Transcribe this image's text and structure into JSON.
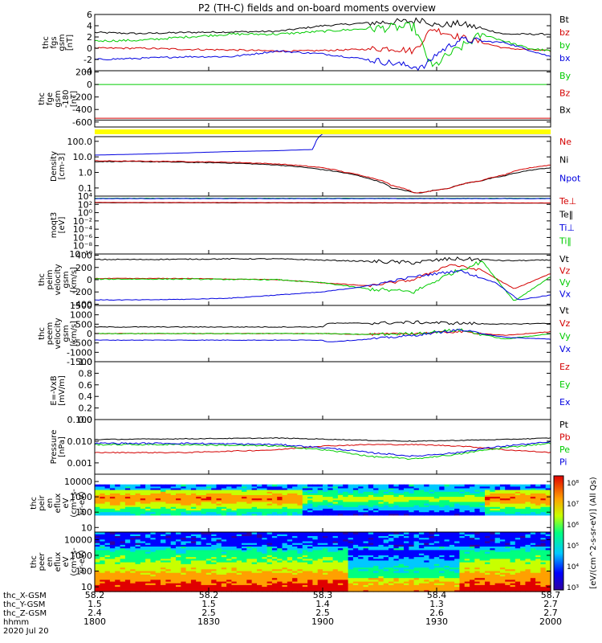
{
  "title": "P2 (TH-C) fields and on-board moments overview",
  "colors": {
    "black": "#000000",
    "red": "#d40000",
    "green": "#00cc00",
    "blue": "#0000e0",
    "yellow": "#ffff00",
    "frame": "#000000"
  },
  "chart_data": [
    {
      "type": "line",
      "ylabel": [
        "thc",
        "fgs",
        "gsm",
        "[nT]"
      ],
      "ylim": [
        -4,
        6
      ],
      "ticks": [
        "6",
        "4",
        "2",
        "0",
        "-2",
        "-4"
      ],
      "tick_values": [
        6,
        4,
        2,
        0,
        -2,
        -4
      ],
      "legend": [
        {
          "name": "Bt",
          "color": "#000000"
        },
        {
          "name": "bz",
          "color": "#d40000"
        },
        {
          "name": "by",
          "color": "#00cc00"
        },
        {
          "name": "bx",
          "color": "#0000e0"
        }
      ],
      "series": [
        {
          "name": "Bt",
          "color": "#000000",
          "noise": 0.15,
          "x": [
            0,
            0.1,
            0.2,
            0.3,
            0.4,
            0.5,
            0.6,
            0.7,
            0.72,
            0.75,
            0.8,
            0.9,
            1.0
          ],
          "y": [
            2.8,
            2.6,
            2.8,
            2.9,
            3.0,
            4.0,
            4.5,
            4.8,
            5.2,
            4.0,
            4.4,
            2.5,
            2.5
          ]
        },
        {
          "name": "bz",
          "color": "#d40000",
          "noise": 0.15,
          "x": [
            0,
            0.1,
            0.2,
            0.3,
            0.4,
            0.45,
            0.55,
            0.65,
            0.7,
            0.74,
            0.8,
            0.9,
            1.0
          ],
          "y": [
            0.0,
            0.0,
            -0.2,
            -0.3,
            -0.5,
            -0.5,
            -0.3,
            0.0,
            -0.5,
            3.5,
            2.0,
            0.0,
            -0.5
          ]
        },
        {
          "name": "by",
          "color": "#00cc00",
          "noise": 0.2,
          "x": [
            0,
            0.1,
            0.2,
            0.3,
            0.4,
            0.5,
            0.6,
            0.7,
            0.74,
            0.77,
            0.85,
            0.95,
            1.0
          ],
          "y": [
            1.3,
            1.4,
            2.0,
            2.5,
            2.5,
            3.0,
            3.5,
            3.8,
            -3.5,
            -1.5,
            2.5,
            0.0,
            -0.5
          ]
        },
        {
          "name": "bx",
          "color": "#0000e0",
          "noise": 0.15,
          "x": [
            0,
            0.1,
            0.2,
            0.3,
            0.4,
            0.5,
            0.6,
            0.68,
            0.72,
            0.75,
            0.8,
            0.9,
            1.0
          ],
          "y": [
            -2.0,
            -1.8,
            -1.5,
            -1.5,
            -0.5,
            -1.0,
            -2.0,
            -3.0,
            -3.5,
            -1.0,
            1.5,
            1.0,
            -1.5
          ]
        }
      ]
    },
    {
      "type": "line",
      "ylabel": [
        "thc",
        "fge",
        "gsm",
        "-180",
        "[nT]"
      ],
      "ylim": [
        -680,
        220
      ],
      "ticks": [
        "200",
        "0",
        "-200",
        "-400",
        "-600"
      ],
      "tick_values": [
        200,
        0,
        -200,
        -400,
        -600
      ],
      "legend": [
        {
          "name": "By",
          "color": "#00cc00"
        },
        {
          "name": "Bz",
          "color": "#d40000"
        },
        {
          "name": "Bx",
          "color": "#000000"
        }
      ],
      "series": [
        {
          "name": "By",
          "color": "#00cc00",
          "noise": 0,
          "x": [
            0,
            1
          ],
          "y": [
            0,
            0
          ]
        },
        {
          "name": "Bz",
          "color": "#d40000",
          "noise": 0,
          "x": [
            0,
            1
          ],
          "y": [
            -540,
            -540
          ]
        },
        {
          "name": "Bx",
          "color": "#000000",
          "noise": 0,
          "x": [
            0,
            1
          ],
          "y": [
            -570,
            -570
          ]
        }
      ]
    },
    {
      "type": "line",
      "ylog": true,
      "ylabel": [
        "Density",
        "[cm-3]"
      ],
      "ylim": [
        0.03,
        200
      ],
      "ticks": [
        "100.0",
        "10.0",
        "1.0",
        "0.1"
      ],
      "tick_values": [
        100,
        10,
        1,
        0.1
      ],
      "legend": [
        {
          "name": "Ne",
          "color": "#d40000"
        },
        {
          "name": "Ni",
          "color": "#000000"
        },
        {
          "name": "Npot",
          "color": "#0000e0"
        }
      ],
      "series": [
        {
          "name": "Npot",
          "color": "#0000e0",
          "noise": 0,
          "x": [
            0,
            0.1,
            0.2,
            0.3,
            0.4,
            0.48,
            0.5
          ],
          "y": [
            13,
            15,
            18,
            22,
            25,
            30,
            300
          ]
        },
        {
          "name": "Ni",
          "color": "#000000",
          "noise": 0.05,
          "x": [
            0,
            0.1,
            0.2,
            0.3,
            0.4,
            0.5,
            0.55,
            0.6,
            0.65,
            0.7,
            0.72,
            0.78,
            0.85,
            0.9,
            1.0
          ],
          "y": [
            5,
            5,
            4.5,
            4,
            3,
            1.5,
            0.9,
            0.4,
            0.1,
            0.05,
            0.05,
            0.1,
            0.3,
            0.6,
            2
          ]
        },
        {
          "name": "Ne",
          "color": "#d40000",
          "noise": 0.05,
          "x": [
            0,
            0.1,
            0.2,
            0.3,
            0.4,
            0.5,
            0.55,
            0.6,
            0.65,
            0.7,
            0.72,
            0.78,
            0.85,
            0.9,
            1.0
          ],
          "y": [
            5.5,
            5.3,
            5,
            4.5,
            3.5,
            2,
            1,
            0.5,
            0.15,
            0.05,
            0.05,
            0.1,
            0.3,
            0.7,
            3
          ]
        }
      ]
    },
    {
      "type": "line",
      "ylog": true,
      "ylabel": [
        "moqt3",
        "[eV]"
      ],
      "ylim": [
        1e-10,
        10000
      ],
      "ticks": [
        "10⁴",
        "10²",
        "10⁰",
        "10⁻²",
        "10⁻⁴",
        "10⁻⁶",
        "10⁻⁸",
        "10⁻¹⁰"
      ],
      "tick_values": [
        10000,
        100,
        1,
        0.01,
        0.0001,
        1e-06,
        1e-08,
        1e-10
      ],
      "legend": [
        {
          "name": "Te⊥",
          "color": "#d40000"
        },
        {
          "name": "Te‖",
          "color": "#000000"
        },
        {
          "name": "Ti⊥",
          "color": "#0000e0"
        },
        {
          "name": "Ti‖",
          "color": "#00cc00"
        }
      ],
      "series": [
        {
          "name": "Ti‖",
          "color": "#00cc00",
          "noise": 0.1,
          "x": [
            0,
            1
          ],
          "y": [
            3000,
            3000
          ]
        },
        {
          "name": "Ti⊥",
          "color": "#0000e0",
          "noise": 0.1,
          "x": [
            0,
            1
          ],
          "y": [
            2500,
            2500
          ]
        },
        {
          "name": "Te‖",
          "color": "#000000",
          "noise": 0.05,
          "x": [
            0,
            1
          ],
          "y": [
            250,
            200
          ]
        },
        {
          "name": "Te⊥",
          "color": "#d40000",
          "noise": 0.05,
          "x": [
            0,
            1
          ],
          "y": [
            300,
            220
          ]
        }
      ]
    },
    {
      "type": "line",
      "ylabel": [
        "thc",
        "peim",
        "velocity",
        "gsm",
        "[km/s]"
      ],
      "ylim": [
        -420,
        420
      ],
      "ticks": [
        "400",
        "200",
        "0",
        "-200",
        "-400"
      ],
      "tick_values": [
        400,
        200,
        0,
        -200,
        -400
      ],
      "legend": [
        {
          "name": "Vt",
          "color": "#000000"
        },
        {
          "name": "Vz",
          "color": "#d40000"
        },
        {
          "name": "Vy",
          "color": "#00cc00"
        },
        {
          "name": "Vx",
          "color": "#0000e0"
        }
      ],
      "series": [
        {
          "name": "Vt",
          "color": "#000000",
          "noise": 8,
          "x": [
            0,
            0.1,
            0.2,
            0.3,
            0.4,
            0.5,
            0.6,
            0.7,
            0.78,
            0.85,
            0.9,
            1.0
          ],
          "y": [
            330,
            330,
            335,
            340,
            340,
            320,
            300,
            280,
            340,
            330,
            310,
            320
          ]
        },
        {
          "name": "Vz",
          "color": "#d40000",
          "noise": 5,
          "x": [
            0,
            0.2,
            0.4,
            0.5,
            0.6,
            0.7,
            0.78,
            0.85,
            0.92,
            1.0
          ],
          "y": [
            20,
            20,
            0,
            -50,
            -100,
            0,
            250,
            150,
            -150,
            100
          ]
        },
        {
          "name": "Vy",
          "color": "#00cc00",
          "noise": 8,
          "x": [
            0,
            0.2,
            0.4,
            0.5,
            0.6,
            0.7,
            0.78,
            0.85,
            0.92,
            1.0
          ],
          "y": [
            10,
            10,
            0,
            -50,
            -150,
            -200,
            100,
            300,
            -350,
            50
          ]
        },
        {
          "name": "Vx",
          "color": "#0000e0",
          "noise": 5,
          "x": [
            0,
            0.1,
            0.2,
            0.3,
            0.4,
            0.5,
            0.6,
            0.7,
            0.8,
            0.88,
            0.93,
            1.0
          ],
          "y": [
            -330,
            -330,
            -320,
            -300,
            -250,
            -200,
            -100,
            50,
            150,
            -50,
            -330,
            -250
          ]
        }
      ]
    },
    {
      "type": "line",
      "ylabel": [
        "thc",
        "peem",
        "velocity",
        "gsm",
        "[km/s]"
      ],
      "ylim": [
        -1500,
        1500
      ],
      "ticks": [
        "1500",
        "1000",
        "500",
        "0",
        "-500",
        "-1000",
        "-1500"
      ],
      "tick_values": [
        1500,
        1000,
        500,
        0,
        -500,
        -1000,
        -1500
      ],
      "legend": [
        {
          "name": "Vt",
          "color": "#000000"
        },
        {
          "name": "Vz",
          "color": "#d40000"
        },
        {
          "name": "Vy",
          "color": "#00cc00"
        },
        {
          "name": "Vx",
          "color": "#0000e0"
        }
      ],
      "series": [
        {
          "name": "Vt",
          "color": "#000000",
          "noise": 20,
          "x": [
            0,
            0.2,
            0.4,
            0.5,
            0.51,
            0.6,
            0.7,
            0.8,
            0.9,
            1.0
          ],
          "y": [
            350,
            350,
            350,
            350,
            550,
            550,
            600,
            550,
            500,
            550
          ]
        },
        {
          "name": "Vz",
          "color": "#d40000",
          "noise": 15,
          "x": [
            0,
            0.3,
            0.5,
            0.6,
            0.7,
            0.8,
            0.9,
            1.0
          ],
          "y": [
            0,
            0,
            0,
            -50,
            0,
            100,
            -100,
            100
          ]
        },
        {
          "name": "Vy",
          "color": "#00cc00",
          "noise": 20,
          "x": [
            0,
            0.3,
            0.5,
            0.6,
            0.7,
            0.8,
            0.9,
            1.0
          ],
          "y": [
            0,
            0,
            0,
            -50,
            0,
            200,
            -300,
            0
          ]
        },
        {
          "name": "Vx",
          "color": "#0000e0",
          "noise": 15,
          "x": [
            0,
            0.2,
            0.4,
            0.5,
            0.51,
            0.6,
            0.7,
            0.8,
            0.9,
            1.0
          ],
          "y": [
            -350,
            -350,
            -350,
            -350,
            -450,
            -300,
            -100,
            200,
            -200,
            -300
          ]
        }
      ]
    },
    {
      "type": "line",
      "ylabel": [
        "E=-VxB",
        "[mV/m]"
      ],
      "ylim": [
        0,
        1
      ],
      "ticks": [
        "1.0",
        "0.8",
        "0.6",
        "0.4",
        "0.2",
        "0.0"
      ],
      "tick_values": [
        1,
        0.8,
        0.6,
        0.4,
        0.2,
        0
      ],
      "legend": [
        {
          "name": "Ez",
          "color": "#d40000"
        },
        {
          "name": "Ey",
          "color": "#00cc00"
        },
        {
          "name": "Ex",
          "color": "#0000e0"
        }
      ],
      "series": []
    },
    {
      "type": "line",
      "ylog": true,
      "ylabel": [
        "Pressure",
        "[nPa]"
      ],
      "ylim": [
        0.0003,
        0.1
      ],
      "ticks": [
        "0.100",
        "0.010",
        "0.001"
      ],
      "tick_values": [
        0.1,
        0.01,
        0.001
      ],
      "legend": [
        {
          "name": "Pt",
          "color": "#000000"
        },
        {
          "name": "Pb",
          "color": "#d40000"
        },
        {
          "name": "Pe",
          "color": "#00cc00"
        },
        {
          "name": "Pi",
          "color": "#0000e0"
        }
      ],
      "series": [
        {
          "name": "Pt",
          "color": "#000000",
          "noise": 0.04,
          "x": [
            0,
            0.2,
            0.4,
            0.6,
            0.7,
            0.8,
            0.9,
            1.0
          ],
          "y": [
            0.012,
            0.013,
            0.014,
            0.011,
            0.01,
            0.011,
            0.012,
            0.014
          ]
        },
        {
          "name": "Pb",
          "color": "#d40000",
          "noise": 0.05,
          "x": [
            0,
            0.2,
            0.4,
            0.5,
            0.6,
            0.7,
            0.8,
            0.9,
            1.0
          ],
          "y": [
            0.003,
            0.003,
            0.004,
            0.006,
            0.007,
            0.007,
            0.006,
            0.004,
            0.003
          ]
        },
        {
          "name": "Pe",
          "color": "#00cc00",
          "noise": 0.08,
          "x": [
            0,
            0.2,
            0.4,
            0.5,
            0.6,
            0.7,
            0.8,
            0.9,
            1.0
          ],
          "y": [
            0.007,
            0.007,
            0.006,
            0.004,
            0.002,
            0.0015,
            0.0025,
            0.005,
            0.008
          ]
        },
        {
          "name": "Pi",
          "color": "#0000e0",
          "noise": 0.08,
          "x": [
            0,
            0.2,
            0.4,
            0.5,
            0.6,
            0.7,
            0.8,
            0.9,
            1.0
          ],
          "y": [
            0.008,
            0.008,
            0.007,
            0.005,
            0.003,
            0.002,
            0.003,
            0.006,
            0.009
          ]
        }
      ]
    },
    {
      "type": "heatmap",
      "ylabel": [
        "thc",
        "peir",
        "en",
        "eflux",
        "eV",
        "(cm²-s-",
        "sr-eV)"
      ],
      "ylog": true,
      "ylim": [
        5,
        30000
      ],
      "ticks": [
        "10000",
        "1000",
        "100",
        "10"
      ],
      "tick_values": [
        10000,
        1000,
        100,
        10
      ]
    },
    {
      "type": "heatmap",
      "ylabel": [
        "thc",
        "peer",
        "en",
        "eflux",
        "eV",
        "(cm²-s-",
        "sr-eV)"
      ],
      "ylog": true,
      "ylim": [
        5,
        30000
      ],
      "ticks": [
        "10000",
        "1000",
        "100",
        "10"
      ],
      "tick_values": [
        10000,
        1000,
        100,
        10
      ]
    }
  ],
  "colorbar": {
    "ticks": [
      "10⁸",
      "10⁷",
      "10⁶",
      "10⁵",
      "10⁴",
      "10³"
    ],
    "label": "[eV/(cm^2-s-sr-eV)] (All Qs)"
  },
  "x_axis": {
    "rows": [
      {
        "label": "thc_X-GSM",
        "values": [
          "58.2",
          "58.2",
          "58.3",
          "58.4",
          "58.7"
        ]
      },
      {
        "label": "thc_Y-GSM",
        "values": [
          "1.5",
          "1.5",
          "1.4",
          "1.3",
          "2.7"
        ]
      },
      {
        "label": "thc_Z-GSM",
        "values": [
          "2.4",
          "2.5",
          "2.5",
          "2.6",
          "2.7"
        ]
      },
      {
        "label": "hhmm",
        "values": [
          "1800",
          "1830",
          "1900",
          "1930",
          "2000"
        ]
      }
    ],
    "date": "2020 Jul 20"
  }
}
